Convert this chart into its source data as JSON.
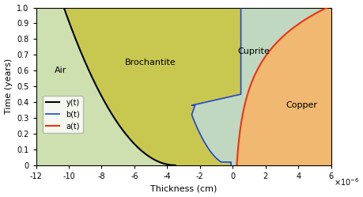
{
  "title": "",
  "xlabel": "Thickness (cm)",
  "ylabel": "Time (years)",
  "xlim": [
    -1.2e-05,
    6e-06
  ],
  "ylim": [
    0,
    1
  ],
  "xtick_labels": [
    "-12",
    "-10",
    "-8",
    "-6",
    "-4",
    "-2",
    "0",
    "2",
    "4",
    "6"
  ],
  "xtick_vals": [
    -1.2e-05,
    -1e-05,
    -8e-06,
    -6e-06,
    -4e-06,
    -2e-06,
    0,
    2e-06,
    4e-06,
    6e-06
  ],
  "ytick_vals": [
    0,
    0.1,
    0.2,
    0.3,
    0.4,
    0.5,
    0.6,
    0.7,
    0.8,
    0.9,
    1.0
  ],
  "color_air": "#cfe0b0",
  "color_brochantite": "#c8c850",
  "color_cuprite": "#c0d8c0",
  "color_copper": "#f0b870",
  "color_gamma": "#000000",
  "color_beta": "#2244cc",
  "color_alpha": "#ee3311",
  "label_air": "Air",
  "label_brochantite": "Brochantite",
  "label_cuprite": "Cuprite",
  "label_copper": "Copper",
  "legend_gamma": "y(t)",
  "legend_beta": "b(t)",
  "legend_alpha": "a(t)",
  "figsize": [
    4.6,
    2.49
  ],
  "dpi": 100
}
